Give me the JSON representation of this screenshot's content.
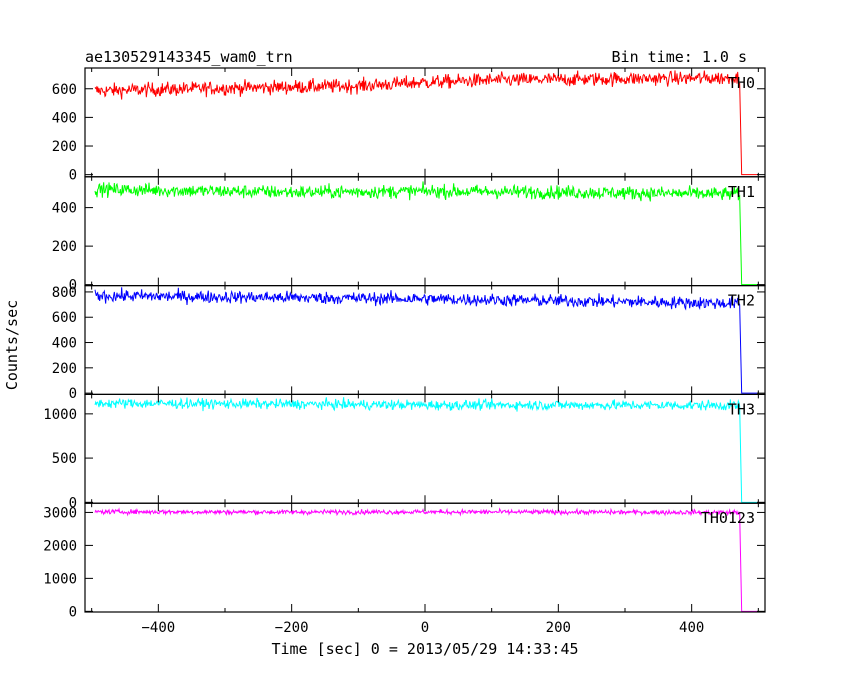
{
  "chart_data": {
    "type": "line",
    "title": "ae130529143345_wam0_trn",
    "bin_time_label": "Bin time: 1.0 s",
    "xlabel": "Time [sec] 0 = 2013/05/29 14:33:45",
    "ylabel": "Counts/sec",
    "xlim": [
      -510,
      510
    ],
    "x_ticks": [
      -400,
      -200,
      0,
      200,
      400
    ],
    "x_tick_labels": [
      "−400",
      "−200",
      "0",
      "200",
      "400"
    ],
    "series": [
      {
        "name": "TH0",
        "color": "#ff0000",
        "ylim": [
          -15,
          745
        ],
        "y_ticks": [
          0,
          200,
          400,
          600
        ],
        "y_tick_labels": [
          "0",
          "200",
          "400",
          "600"
        ],
        "noise": 35,
        "points": [
          [
            -495,
            585
          ],
          [
            -300,
            605
          ],
          [
            -100,
            620
          ],
          [
            0,
            645
          ],
          [
            100,
            660
          ],
          [
            300,
            670
          ],
          [
            470,
            675
          ],
          [
            472,
            640
          ],
          [
            475,
            0
          ],
          [
            500,
            0
          ]
        ]
      },
      {
        "name": "TH1",
        "color": "#00ff00",
        "ylim": [
          -5,
          560
        ],
        "y_ticks": [
          0,
          200,
          400
        ],
        "y_tick_labels": [
          "0",
          "200",
          "400"
        ],
        "noise": 25,
        "points": [
          [
            -495,
            495
          ],
          [
            -200,
            480
          ],
          [
            0,
            485
          ],
          [
            200,
            480
          ],
          [
            470,
            470
          ],
          [
            472,
            460
          ],
          [
            475,
            0
          ],
          [
            500,
            0
          ]
        ]
      },
      {
        "name": "TH2",
        "color": "#0000ff",
        "ylim": [
          -10,
          850
        ],
        "y_ticks": [
          0,
          200,
          400,
          600,
          800
        ],
        "y_tick_labels": [
          "0",
          "200",
          "400",
          "600",
          "800"
        ],
        "noise": 35,
        "points": [
          [
            -495,
            770
          ],
          [
            -200,
            755
          ],
          [
            0,
            745
          ],
          [
            200,
            730
          ],
          [
            400,
            715
          ],
          [
            470,
            710
          ],
          [
            472,
            700
          ],
          [
            475,
            0
          ],
          [
            500,
            0
          ]
        ]
      },
      {
        "name": "TH3",
        "color": "#00ffff",
        "ylim": [
          -10,
          1220
        ],
        "y_ticks": [
          0,
          500,
          1000
        ],
        "y_tick_labels": [
          "0",
          "500",
          "1000"
        ],
        "noise": 40,
        "points": [
          [
            -495,
            1120
          ],
          [
            -200,
            1110
          ],
          [
            0,
            1100
          ],
          [
            200,
            1100
          ],
          [
            470,
            1095
          ],
          [
            472,
            1085
          ],
          [
            475,
            0
          ],
          [
            500,
            0
          ]
        ]
      },
      {
        "name": "TH0123",
        "color": "#ff00ff",
        "ylim": [
          -20,
          3280
        ],
        "y_ticks": [
          0,
          1000,
          2000,
          3000
        ],
        "y_tick_labels": [
          "0",
          "1000",
          "2000",
          "3000"
        ],
        "noise": 50,
        "points": [
          [
            -495,
            3020
          ],
          [
            -200,
            3010
          ],
          [
            0,
            3015
          ],
          [
            200,
            3010
          ],
          [
            470,
            3000
          ],
          [
            472,
            2980
          ],
          [
            475,
            0
          ],
          [
            500,
            0
          ]
        ]
      }
    ]
  }
}
